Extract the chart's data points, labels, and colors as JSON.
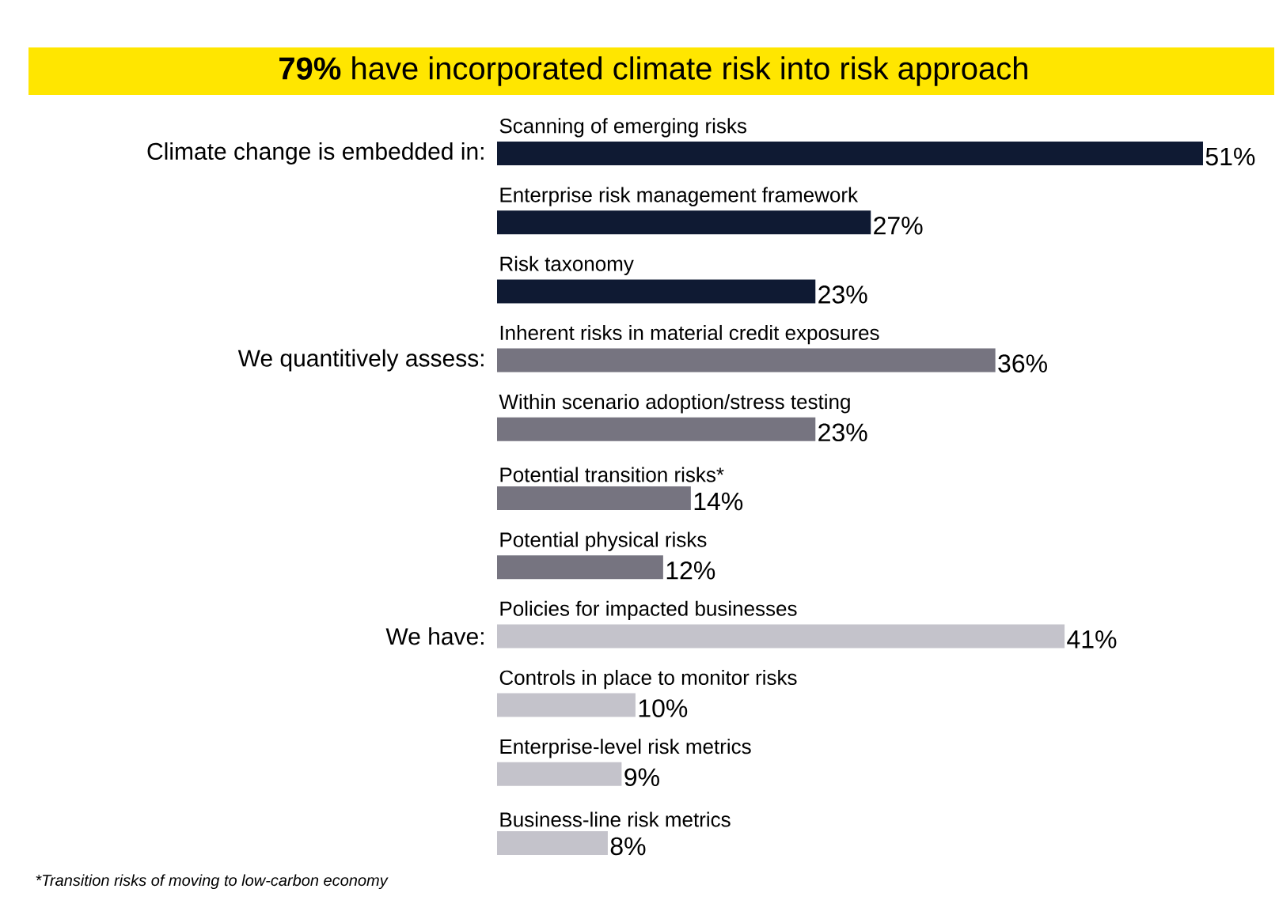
{
  "chart_data": {
    "type": "bar",
    "orientation": "horizontal",
    "title": "**79%** have incorporated climate risk into risk approach",
    "categories": [
      "Scanning of emerging risks",
      "Enterprise risk management framework",
      "Risk taxonomy",
      "Inherent risks in material credit exposures",
      "Within scenario adoption/stress testing",
      "Potential transition risks*",
      "Potential physical risks",
      "Policies for impacted businesses",
      "Controls in place to monitor risks",
      "Enterprise-level risk metrics",
      "Business-line risk metrics"
    ],
    "values": [
      51,
      27,
      23,
      36,
      23,
      14,
      12,
      41,
      10,
      9,
      8
    ],
    "value_labels": [
      "51%",
      "27%",
      "23%",
      "36%",
      "23%",
      "14%",
      "12%",
      "41%",
      "10%",
      "9%",
      "8%"
    ],
    "colors": [
      "#0f1a33",
      "#0f1a33",
      "#0f1a33",
      "#767480",
      "#767480",
      "#767480",
      "#767480",
      "#c4c3cb",
      "#c4c3cb",
      "#c4c3cb",
      "#c4c3cb"
    ],
    "annotations": [
      "Climate change is embedded in:",
      "We quantitively assess:",
      "We have:",
      "*Transition risks of moving to low-carbon economy"
    ]
  }
}
